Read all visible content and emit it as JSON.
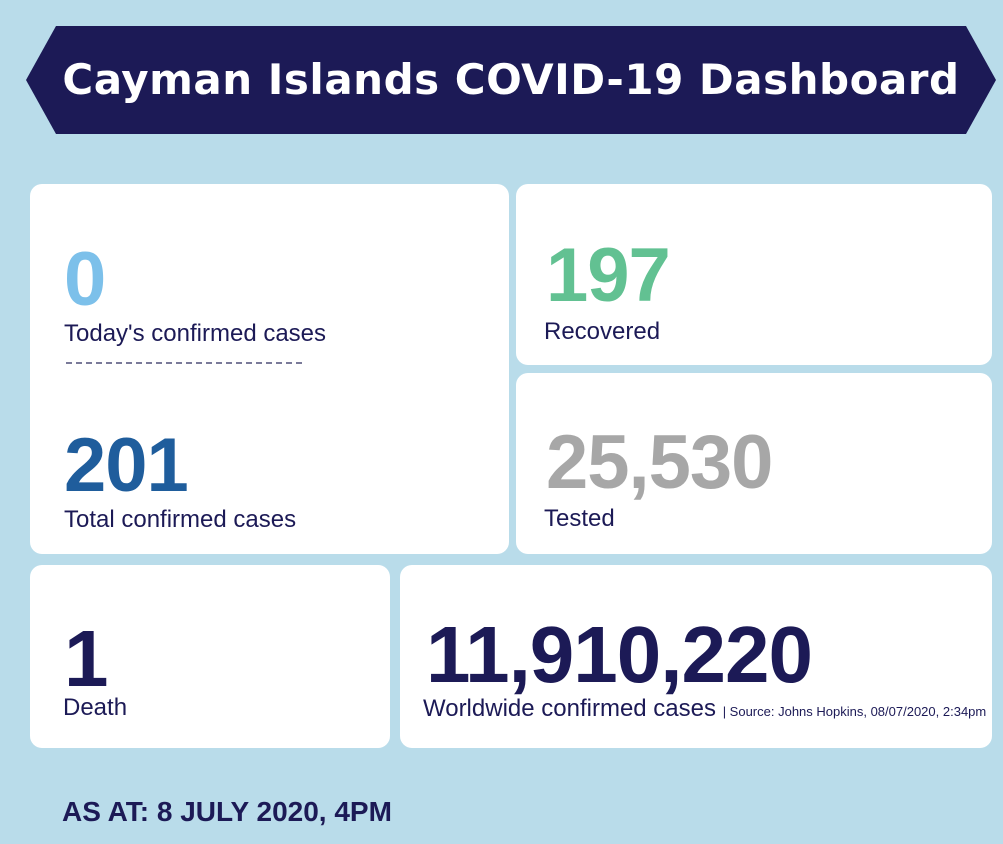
{
  "header": {
    "title": "Cayman Islands COVID-19 Dashboard"
  },
  "stats": {
    "today": {
      "value": "0",
      "label": "Today's confirmed cases"
    },
    "total": {
      "value": "201",
      "label": "Total confirmed cases"
    },
    "recovered": {
      "value": "197",
      "label": "Recovered"
    },
    "tested": {
      "value": "25,530",
      "label": "Tested"
    },
    "death": {
      "value": "1",
      "label": "Death"
    },
    "worldwide": {
      "value": "11,910,220",
      "label": "Worldwide confirmed cases",
      "source": "| Source: Johns Hopkins, 08/07/2020, 2:34pm"
    }
  },
  "footer": {
    "as_at": "AS AT: 8 JULY 2020, 4PM"
  },
  "colors": {
    "background": "#b9dcea",
    "banner": "#1c1a56",
    "today": "#7cc0ea",
    "total": "#1f5d9c",
    "recovered": "#62c192",
    "tested": "#a7a7a7",
    "dark": "#1c1a56"
  }
}
